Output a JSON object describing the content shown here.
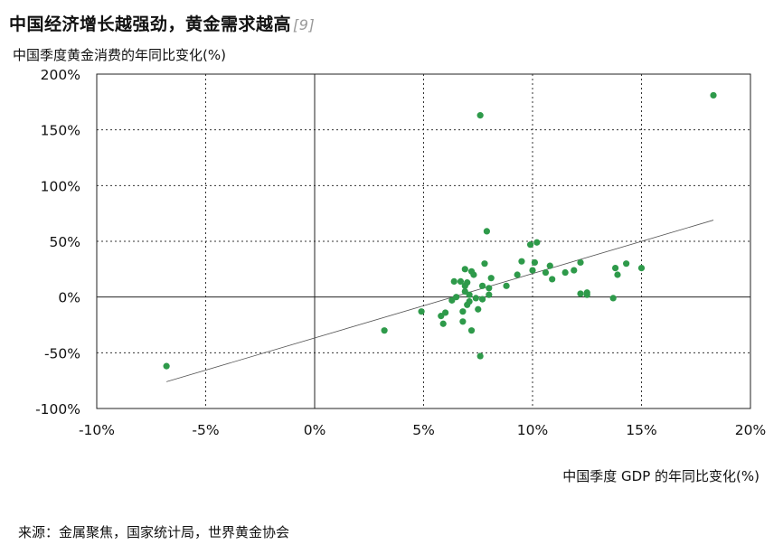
{
  "title": "中国经济增长越强劲，黄金需求越高",
  "title_ref": "[9]",
  "source": "来源：金属聚焦，国家统计局，世界黄金协会",
  "chart_data": {
    "type": "scatter",
    "xlabel": "中国季度 GDP 的年同比变化(%)",
    "ylabel": "中国季度黄金消费的年同比变化(%)",
    "xlim": [
      -10,
      20
    ],
    "ylim": [
      -100,
      200
    ],
    "x_ticks": [
      -10,
      -5,
      0,
      5,
      10,
      15,
      20
    ],
    "y_ticks": [
      -100,
      -50,
      0,
      50,
      100,
      150,
      200
    ],
    "x_tick_labels": [
      "-10%",
      "-5%",
      "0%",
      "5%",
      "10%",
      "15%",
      "20%"
    ],
    "y_tick_labels": [
      "-100%",
      "-50%",
      "0%",
      "50%",
      "100%",
      "150%",
      "200%"
    ],
    "grid": "dashed",
    "point_color": "#2e9a4a",
    "trend_color": "#555555",
    "trendline": {
      "x": [
        -6.8,
        18.3
      ],
      "y": [
        -76,
        69
      ]
    },
    "points": [
      {
        "x": -6.8,
        "y": -62
      },
      {
        "x": 3.2,
        "y": -30
      },
      {
        "x": 4.9,
        "y": -13
      },
      {
        "x": 5.8,
        "y": -17
      },
      {
        "x": 5.9,
        "y": -24
      },
      {
        "x": 6.0,
        "y": -14
      },
      {
        "x": 6.3,
        "y": -3
      },
      {
        "x": 6.4,
        "y": 14
      },
      {
        "x": 6.5,
        "y": 0
      },
      {
        "x": 6.7,
        "y": 14
      },
      {
        "x": 6.8,
        "y": -13
      },
      {
        "x": 6.8,
        "y": -22
      },
      {
        "x": 6.9,
        "y": 10
      },
      {
        "x": 6.9,
        "y": 5
      },
      {
        "x": 6.9,
        "y": 25
      },
      {
        "x": 7.0,
        "y": 13
      },
      {
        "x": 7.0,
        "y": -7
      },
      {
        "x": 7.1,
        "y": -4
      },
      {
        "x": 7.1,
        "y": 2
      },
      {
        "x": 7.2,
        "y": 23
      },
      {
        "x": 7.2,
        "y": -30
      },
      {
        "x": 7.3,
        "y": 20
      },
      {
        "x": 7.4,
        "y": -1
      },
      {
        "x": 7.5,
        "y": -11
      },
      {
        "x": 7.6,
        "y": -53
      },
      {
        "x": 7.6,
        "y": 163
      },
      {
        "x": 7.7,
        "y": 10
      },
      {
        "x": 7.7,
        "y": -2
      },
      {
        "x": 7.8,
        "y": 30
      },
      {
        "x": 7.9,
        "y": 59
      },
      {
        "x": 8.0,
        "y": 2
      },
      {
        "x": 8.0,
        "y": 8
      },
      {
        "x": 8.1,
        "y": 17
      },
      {
        "x": 8.8,
        "y": 10
      },
      {
        "x": 9.3,
        "y": 20
      },
      {
        "x": 9.5,
        "y": 32
      },
      {
        "x": 9.9,
        "y": 47
      },
      {
        "x": 10.0,
        "y": 24
      },
      {
        "x": 10.1,
        "y": 31
      },
      {
        "x": 10.2,
        "y": 49
      },
      {
        "x": 10.6,
        "y": 22
      },
      {
        "x": 10.8,
        "y": 28
      },
      {
        "x": 10.9,
        "y": 16
      },
      {
        "x": 11.5,
        "y": 22
      },
      {
        "x": 11.9,
        "y": 24
      },
      {
        "x": 12.2,
        "y": 31
      },
      {
        "x": 12.2,
        "y": 3
      },
      {
        "x": 12.5,
        "y": 2
      },
      {
        "x": 12.5,
        "y": 4
      },
      {
        "x": 13.7,
        "y": -1
      },
      {
        "x": 13.8,
        "y": 26
      },
      {
        "x": 13.9,
        "y": 20
      },
      {
        "x": 14.3,
        "y": 30
      },
      {
        "x": 15.0,
        "y": 26
      },
      {
        "x": 18.3,
        "y": 181
      }
    ]
  }
}
